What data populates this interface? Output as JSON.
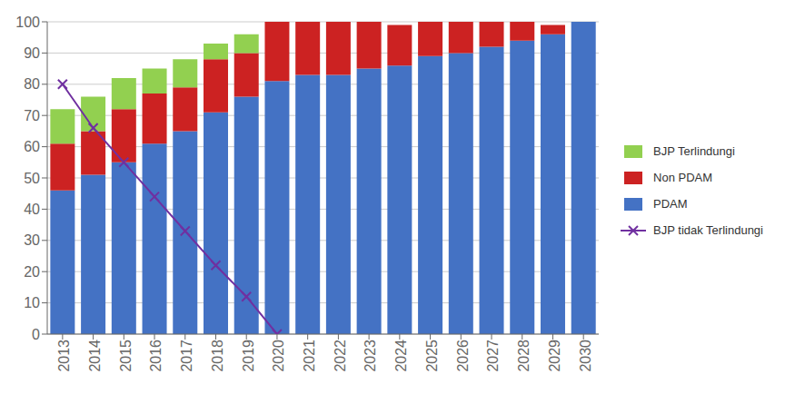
{
  "chart_data": {
    "type": "bar",
    "stacked": true,
    "grid": true,
    "legend": "right",
    "categories": [
      "2013",
      "2014",
      "2015",
      "2016",
      "2017",
      "2018",
      "2019",
      "2020",
      "2021",
      "2022",
      "2023",
      "2024",
      "2025",
      "2026",
      "2027",
      "2028",
      "2029",
      "2030"
    ],
    "ylim": [
      0,
      100
    ],
    "yticks": [
      0,
      10,
      20,
      30,
      40,
      50,
      60,
      70,
      80,
      90,
      100
    ],
    "series": [
      {
        "name": "PDAM",
        "color": "#4472C4",
        "values": [
          46,
          51,
          55,
          61,
          65,
          71,
          76,
          81,
          83,
          83,
          85,
          86,
          89,
          90,
          92,
          94,
          96,
          100
        ]
      },
      {
        "name": "Non PDAM",
        "color": "#CC2222",
        "values": [
          15,
          14,
          17,
          16,
          14,
          17,
          14,
          19,
          17,
          17,
          15,
          13,
          11,
          10,
          8,
          6,
          3,
          0
        ]
      },
      {
        "name": "BJP Terlindungi",
        "color": "#92D050",
        "values": [
          11,
          11,
          10,
          8,
          9,
          5,
          6,
          0,
          0,
          0,
          0,
          0,
          0,
          0,
          0,
          0,
          0,
          0
        ]
      },
      {
        "name": "BJP tidak Terlindungi",
        "type": "line",
        "color": "#7030A0",
        "marker": "x",
        "values": [
          80,
          66,
          55,
          44,
          33,
          22,
          12,
          0,
          null,
          null,
          null,
          null,
          null,
          null,
          null,
          null,
          null,
          null
        ]
      }
    ]
  }
}
